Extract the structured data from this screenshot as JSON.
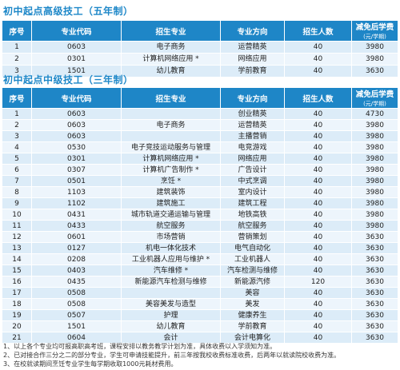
{
  "section1": {
    "title": "初中起点高级技工（五年制）",
    "headers": [
      "序号",
      "专业代码",
      "招生专业",
      "专业方向",
      "招生人数",
      "减免后学费",
      "(元/学期)"
    ],
    "rows": [
      {
        "no": "1",
        "code": "0603",
        "major": "电子商务",
        "direction": "运营精英",
        "num": "40",
        "fee": "3980"
      },
      {
        "no": "2",
        "code": "0301",
        "major": "计算机网络应用 *",
        "direction": "网络应用",
        "num": "40",
        "fee": "3980"
      },
      {
        "no": "3",
        "code": "1501",
        "major": "幼儿教育",
        "direction": "学前教育",
        "num": "40",
        "fee": "3630"
      }
    ]
  },
  "section2": {
    "title": "初中起点中级技工（三年制）",
    "headers": [
      "序号",
      "专业代码",
      "招生专业",
      "专业方向",
      "招生人数",
      "减免后学费",
      "(元/学期)"
    ],
    "rows": [
      {
        "no": "1",
        "code": "0603",
        "direction": "创业精英",
        "num": "40",
        "fee": "4730"
      },
      {
        "no": "2",
        "code": "0603",
        "major": "电子商务",
        "direction": "运营精英",
        "num": "40",
        "fee": "3980"
      },
      {
        "no": "3",
        "code": "0603",
        "direction": "主播营销",
        "num": "40",
        "fee": "3980"
      },
      {
        "no": "4",
        "code": "0530",
        "major": "电子竞技运动服务与管理",
        "direction": "电竞游戏",
        "num": "40",
        "fee": "3980"
      },
      {
        "no": "5",
        "code": "0301",
        "major": "计算机网络应用 *",
        "direction": "网络应用",
        "num": "40",
        "fee": "3980"
      },
      {
        "no": "6",
        "code": "0307",
        "major": "计算机广告制作 *",
        "direction": "广告设计",
        "num": "40",
        "fee": "3980"
      },
      {
        "no": "7",
        "code": "0501",
        "major": "烹饪 *",
        "direction": "中式烹调",
        "num": "40",
        "fee": "3980"
      },
      {
        "no": "8",
        "code": "1103",
        "major": "建筑装饰",
        "direction": "室内设计",
        "num": "40",
        "fee": "3980"
      },
      {
        "no": "9",
        "code": "1102",
        "major": "建筑施工",
        "direction": "建筑工程",
        "num": "40",
        "fee": "3980"
      },
      {
        "no": "10",
        "code": "0431",
        "major": "城市轨道交通运输与管理",
        "direction": "地铁高铁",
        "num": "40",
        "fee": "3980"
      },
      {
        "no": "11",
        "code": "0433",
        "major": "航空服务",
        "direction": "航空服务",
        "num": "40",
        "fee": "3980"
      },
      {
        "no": "12",
        "code": "0601",
        "major": "市场营销",
        "direction": "营销策划",
        "num": "40",
        "fee": "3630"
      },
      {
        "no": "13",
        "code": "0127",
        "major": "机电一体化技术",
        "direction": "电气自动化",
        "num": "40",
        "fee": "3630"
      },
      {
        "no": "14",
        "code": "0208",
        "major": "工业机器人应用与维护 *",
        "direction": "工业机器人",
        "num": "40",
        "fee": "3630"
      },
      {
        "no": "15",
        "code": "0403",
        "major": "汽车维修 *",
        "direction": "汽车检测与维修",
        "num": "40",
        "fee": "3630"
      },
      {
        "no": "16",
        "code": "0435",
        "major": "新能源汽车检测与维修",
        "direction": "新能源汽修",
        "num": "120",
        "fee": "3630"
      },
      {
        "no": "17",
        "code": "0508",
        "direction": "美容",
        "num": "40",
        "fee": "3630"
      },
      {
        "no": "18",
        "code": "0508",
        "major": "美容美发与造型",
        "direction": "美发",
        "num": "40",
        "fee": "3630"
      },
      {
        "no": "19",
        "code": "0507",
        "major": "护理",
        "direction": "健康养生",
        "num": "40",
        "fee": "3630"
      },
      {
        "no": "20",
        "code": "1501",
        "major": "幼儿教育",
        "direction": "学前教育",
        "num": "40",
        "fee": "3630"
      },
      {
        "no": "21",
        "code": "0604",
        "major": "会计",
        "direction": "会计电算化",
        "num": "40",
        "fee": "3630"
      }
    ]
  },
  "notes": [
    "1、以上各个专业均可报高职高考班，课程安排以教务教学计划为准，具体收费以入学须知为准。",
    "2、已对接合作三分之二的部分专业，学生可申请技能提升，前三年按我校收费标准收费，后两年以就读院校收费为准。",
    "3、在校就读期间烹饪专业学生每学期收取1000元耗材费用。"
  ]
}
